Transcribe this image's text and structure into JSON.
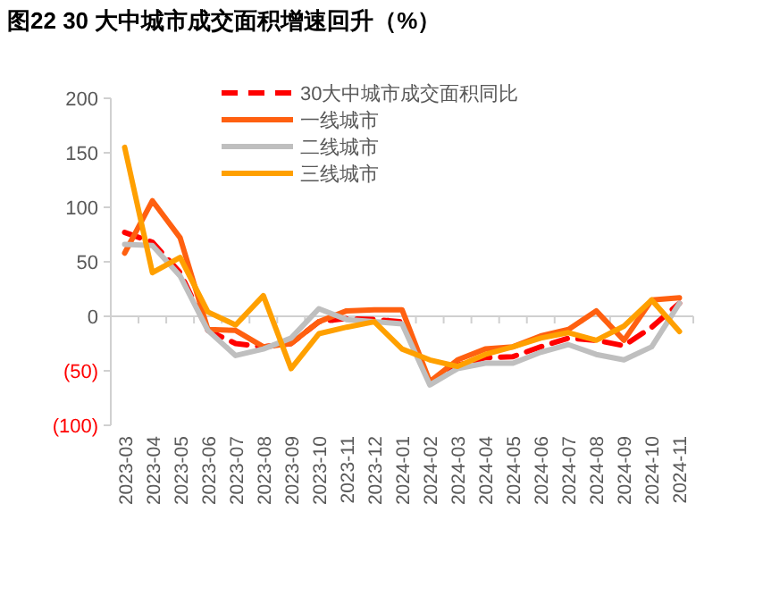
{
  "chart_data": {
    "type": "line",
    "title": "图22 30 大中城市成交面积增速回升（%）",
    "categories": [
      "2023-03",
      "2023-04",
      "2023-05",
      "2023-06",
      "2023-07",
      "2023-08",
      "2023-09",
      "2023-10",
      "2023-11",
      "2023-12",
      "2024-01",
      "2024-02",
      "2024-03",
      "2024-04",
      "2024-05",
      "2024-06",
      "2024-07",
      "2024-08",
      "2024-09",
      "2024-10",
      "2024-11"
    ],
    "series": [
      {
        "name": "30大中城市成交面积同比",
        "color": "#ff0000",
        "line_style": "dashed",
        "values": [
          77,
          68,
          40,
          -13,
          -25,
          -28,
          -25,
          -5,
          -2,
          -3,
          -5,
          -60,
          -45,
          -38,
          -37,
          -28,
          -20,
          -22,
          -27,
          -10,
          12
        ]
      },
      {
        "name": "一线城市",
        "color": "#ff6010",
        "line_style": "solid",
        "values": [
          58,
          106,
          72,
          -12,
          -13,
          -28,
          -25,
          -5,
          5,
          6,
          6,
          -60,
          -40,
          -30,
          -28,
          -18,
          -12,
          5,
          -22,
          15,
          17
        ]
      },
      {
        "name": "二线城市",
        "color": "#bfbfbf",
        "line_style": "solid",
        "values": [
          66,
          65,
          37,
          -13,
          -36,
          -30,
          -20,
          7,
          -3,
          -5,
          -7,
          -63,
          -48,
          -43,
          -43,
          -33,
          -26,
          -35,
          -40,
          -28,
          12
        ]
      },
      {
        "name": "三线城市",
        "color": "#ffa000",
        "line_style": "solid",
        "values": [
          155,
          40,
          54,
          4,
          -8,
          19,
          -48,
          -16,
          -10,
          -5,
          -30,
          -40,
          -46,
          -35,
          -28,
          -20,
          -15,
          -22,
          -9,
          15,
          -14
        ]
      }
    ],
    "ylim": [
      -100,
      200
    ],
    "yticks": [
      {
        "value": -100,
        "label": "(100)"
      },
      {
        "value": -50,
        "label": "(50)"
      },
      0,
      50,
      100,
      150,
      200
    ],
    "legend": "top",
    "marker": "none"
  }
}
